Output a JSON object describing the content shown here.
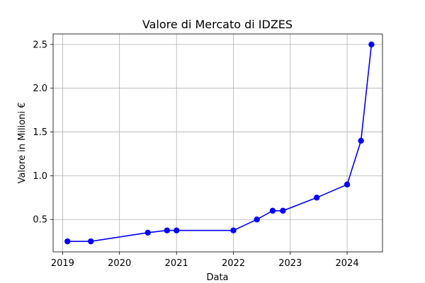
{
  "chart_data": {
    "type": "line",
    "title": "Valore di Mercato di IDZES",
    "xlabel": "Data",
    "ylabel": "Valore in Milioni €",
    "x_axis": "date",
    "xlim": [
      "2018-11-01",
      "2024-08-15"
    ],
    "ylim": [
      0.13,
      2.62
    ],
    "x_ticks": [
      {
        "value": "2019-01-01",
        "label": "2019"
      },
      {
        "value": "2020-01-01",
        "label": "2020"
      },
      {
        "value": "2021-01-01",
        "label": "2021"
      },
      {
        "value": "2022-01-01",
        "label": "2022"
      },
      {
        "value": "2023-01-01",
        "label": "2023"
      },
      {
        "value": "2024-01-01",
        "label": "2024"
      }
    ],
    "y_ticks": [
      {
        "value": 0.5,
        "label": "0.5"
      },
      {
        "value": 1.0,
        "label": "1.0"
      },
      {
        "value": 1.5,
        "label": "1.5"
      },
      {
        "value": 2.0,
        "label": "2.0"
      },
      {
        "value": 2.5,
        "label": "2.5"
      }
    ],
    "grid": true,
    "series": [
      {
        "color": "#0000ff",
        "marker": "circle",
        "points": [
          {
            "x": "2019-02-01",
            "y": 0.25
          },
          {
            "x": "2019-07-01",
            "y": 0.25
          },
          {
            "x": "2020-07-01",
            "y": 0.35
          },
          {
            "x": "2020-11-01",
            "y": 0.375
          },
          {
            "x": "2021-01-01",
            "y": 0.375
          },
          {
            "x": "2022-01-01",
            "y": 0.375
          },
          {
            "x": "2022-06-01",
            "y": 0.5
          },
          {
            "x": "2022-09-10",
            "y": 0.6
          },
          {
            "x": "2022-11-15",
            "y": 0.6
          },
          {
            "x": "2023-06-20",
            "y": 0.75
          },
          {
            "x": "2024-01-01",
            "y": 0.9
          },
          {
            "x": "2024-03-30",
            "y": 1.4
          },
          {
            "x": "2024-06-05",
            "y": 2.5
          }
        ]
      }
    ]
  }
}
